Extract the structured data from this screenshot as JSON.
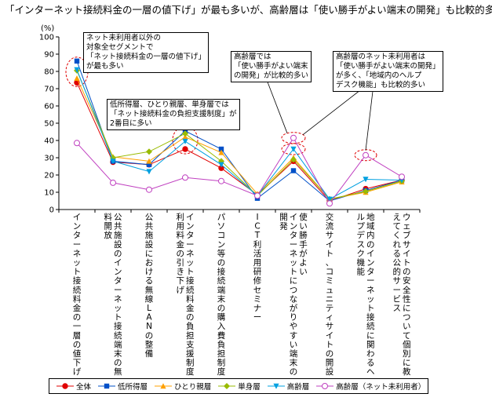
{
  "chart_data": {
    "type": "line",
    "title": "「インターネット接続料金の一層の値下げ」が最も多いが、高齢層は「使い勝手がよい端末の開発」も比較的多い",
    "ylabel": "(%)",
    "ylim": [
      0,
      100
    ],
    "yticks": [
      0,
      10,
      20,
      30,
      40,
      50,
      60,
      70,
      80,
      90,
      100
    ],
    "categories": [
      "インターネット接続料金の一層の値下げ",
      "公共施設のインターネット接続端末の無料開放",
      "公共施設における無線LANの整備",
      "インターネット接続料金の負担支援制度/利用料金の引き下げ",
      "パソコン等の接続端末の購入費負担制度",
      "ICT利活用研修セミナー",
      "使い勝手がよい/インターネットにつながりやすい端末の開発",
      "交流サイト、コミュニティサイトの開設",
      "地域内のインターネット接続に関わるヘルプデスク機能",
      "ウェブサイトの安全性について個別に教えてくれる公的サービス"
    ],
    "series": [
      {
        "name": "全体",
        "color": "#e00000",
        "marker": "circle",
        "values": [
          73.5,
          27.5,
          26,
          35,
          24,
          8.5,
          28,
          5,
          12,
          17
        ]
      },
      {
        "name": "低所得層",
        "color": "#0050c8",
        "marker": "square",
        "values": [
          86,
          28,
          26,
          45.5,
          35,
          6.5,
          22.5,
          5,
          11,
          17
        ]
      },
      {
        "name": "ひとり親層",
        "color": "#ffa000",
        "marker": "triangle",
        "values": [
          76,
          30.5,
          28,
          42,
          33,
          9,
          30,
          6,
          10,
          16
        ]
      },
      {
        "name": "単身層",
        "color": "#99bb00",
        "marker": "diamond",
        "values": [
          80.5,
          30,
          33.5,
          44,
          28,
          8,
          29,
          6,
          10.5,
          16.5
        ]
      },
      {
        "name": "高齢層",
        "color": "#00a0e0",
        "marker": "triangle-down",
        "values": [
          81,
          28,
          22,
          39.5,
          26,
          8,
          35,
          6,
          17.5,
          17
        ]
      },
      {
        "name": "高齢層（ネット未利用者）",
        "color": "#c040c0",
        "marker": "open-circle",
        "values": [
          38.5,
          15.5,
          11.5,
          18.5,
          16.5,
          8,
          41.5,
          3.5,
          31.5,
          19
        ]
      }
    ],
    "annotations": [
      "ネット未利用者以外の\n対象全セグメントで\n「ネット接続料金の一層の値下げ」\nが最も多い",
      "低所得層、ひとり親層、単身層では\n「ネット接続料金の負担支援制度」が\n2番目に多い",
      "高齢層では\n「使い勝手がよい端末\nの開発」が比較的多い",
      "高齢層のネット未利用者は\n「使い勝手がよい端末の開発」\nが多く、「地域内のヘルプ\nデスク機能」も比較的多い"
    ]
  }
}
